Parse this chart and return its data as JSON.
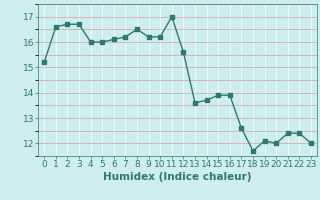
{
  "x": [
    0,
    1,
    2,
    3,
    4,
    5,
    6,
    7,
    8,
    9,
    10,
    11,
    12,
    13,
    14,
    15,
    16,
    17,
    18,
    19,
    20,
    21,
    22,
    23
  ],
  "y": [
    15.2,
    16.6,
    16.7,
    16.7,
    16.0,
    16.0,
    16.1,
    16.2,
    16.5,
    16.2,
    16.2,
    17.0,
    15.6,
    13.6,
    13.7,
    13.9,
    13.9,
    12.6,
    11.7,
    12.1,
    12.0,
    12.4,
    12.4,
    12.0
  ],
  "line_color": "#2d7a6e",
  "marker": "s",
  "markersize": 2.5,
  "linewidth": 1.0,
  "xlabel": "Humidex (Indice chaleur)",
  "xlim": [
    -0.5,
    23.5
  ],
  "ylim": [
    11.5,
    17.5
  ],
  "yticks": [
    12,
    13,
    14,
    15,
    16,
    17
  ],
  "xticks": [
    0,
    1,
    2,
    3,
    4,
    5,
    6,
    7,
    8,
    9,
    10,
    11,
    12,
    13,
    14,
    15,
    16,
    17,
    18,
    19,
    20,
    21,
    22,
    23
  ],
  "bg_color": "#ceeeed",
  "hgrid_color": "#d4a0a0",
  "vgrid_color": "#ffffff",
  "tick_color": "#2d7a6e",
  "label_color": "#2d7a6e",
  "xlabel_fontsize": 7.5,
  "tick_fontsize": 6.5,
  "grid_linewidth": 0.5
}
